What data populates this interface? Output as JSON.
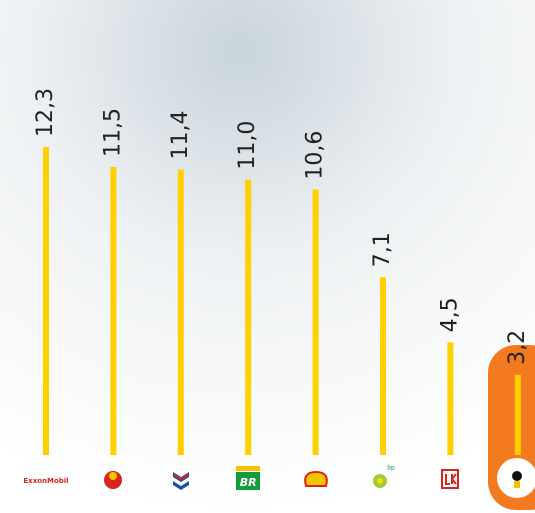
{
  "chart_data": {
    "type": "bar",
    "categories": [
      "ExxonMobil",
      null,
      null,
      "BR",
      null,
      "bp",
      null,
      null
    ],
    "values": [
      12.3,
      11.5,
      11.4,
      11.0,
      10.6,
      7.1,
      4.5,
      3.2
    ],
    "value_labels": [
      "12,3",
      "11,5",
      "11,4",
      "11,0",
      "10,6",
      "7,1",
      "4,5",
      "3,2"
    ],
    "color": "#ffd000",
    "highlight_color": "#f47a20"
  }
}
